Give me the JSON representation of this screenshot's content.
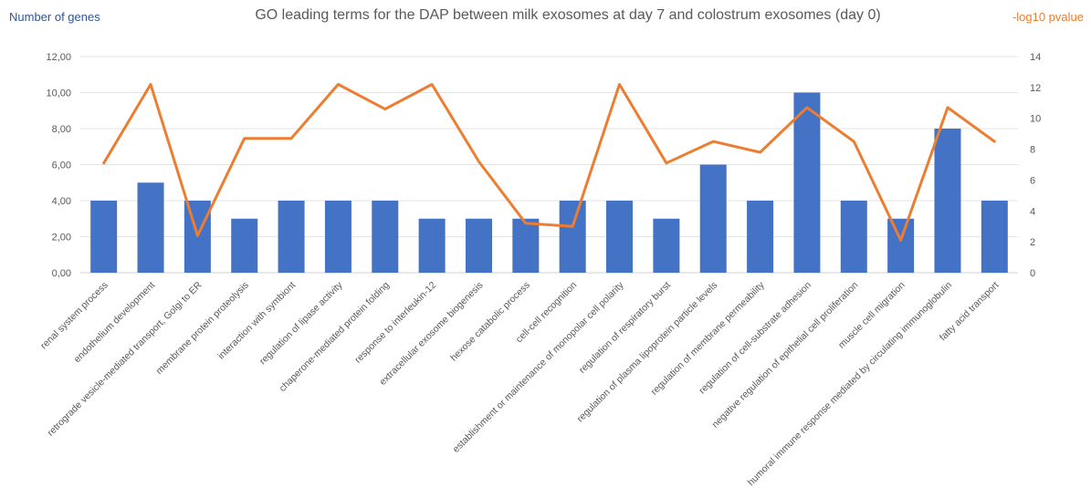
{
  "chart_data": {
    "type": "bar+line",
    "title": "GO leading terms for the DAP between milk exosomes at day 7 and colostrum exosomes (day 0)",
    "ylabel_left": "Number of genes",
    "ylabel_right": "-log10 pvalue",
    "ylim_left": [
      0,
      12
    ],
    "ylim_right": [
      0,
      14
    ],
    "yticks_left": [
      "0,00",
      "2,00",
      "4,00",
      "6,00",
      "8,00",
      "10,00",
      "12,00"
    ],
    "yticks_right": [
      "0",
      "2",
      "4",
      "6",
      "8",
      "10",
      "12",
      "14"
    ],
    "grid": true,
    "categories": [
      "renal system process",
      "endothelium development",
      "retrograde vesicle-mediated transport, Golgi to ER",
      "membrane protein proteolysis",
      "interaction with symbiont",
      "regulation of lipase activity",
      "chaperone-mediated protein folding",
      "response to interleukin-12",
      "extracellular exosome biogenesis",
      "hexose catabolic process",
      "cell-cell recognition",
      "establishment or maintenance of monopolar cell polarity",
      "regulation of respiratory burst",
      "regulation of plasma lipoprotein particle levels",
      "regulation of membrane permeability",
      "regulation of cell-substrate adhesion",
      "negative regulation of epithelial cell proliferation",
      "muscle cell migration",
      "humoral immune response mediated by circulating immunoglobulin",
      "fatty acid transport"
    ],
    "series": [
      {
        "name": "Number of genes",
        "type": "bar",
        "axis": "left",
        "color": "#4472c4",
        "values": [
          4,
          5,
          4,
          3,
          4,
          4,
          4,
          3,
          3,
          3,
          4,
          4,
          3,
          6,
          4,
          10,
          4,
          3,
          8,
          4
        ]
      },
      {
        "name": "-log10 pvalue",
        "type": "line",
        "axis": "right",
        "color": "#ed7d31",
        "values": [
          7.1,
          12.2,
          2.4,
          8.7,
          8.7,
          12.2,
          10.6,
          12.2,
          7.2,
          3.2,
          3.0,
          12.2,
          7.1,
          8.5,
          7.8,
          10.7,
          8.5,
          2.1,
          10.7,
          8.5
        ]
      }
    ]
  }
}
